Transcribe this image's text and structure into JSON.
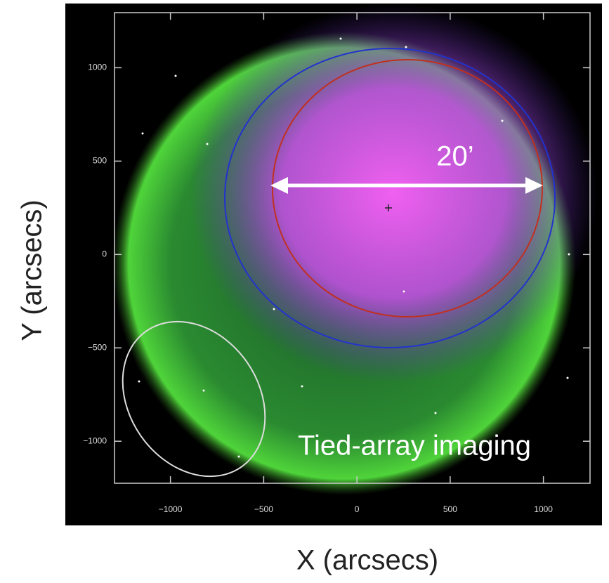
{
  "chart_data": {
    "type": "image",
    "x_label": "X (arcsecs)",
    "y_label": "Y (arcsecs)",
    "annotations": [
      "20’",
      "Tied-array imaging"
    ],
    "xlim": [
      -1300,
      1250
    ],
    "ylim": [
      -1225,
      1295
    ],
    "xticks": [
      {
        "value": -1000,
        "label": "−1000"
      },
      {
        "value": -500,
        "label": "−500"
      },
      0,
      500,
      1000
    ],
    "yticks": [
      {
        "value": -1000,
        "label": "−1000"
      },
      {
        "value": -500,
        "label": "−500"
      },
      0,
      500,
      1000
    ]
  }
}
